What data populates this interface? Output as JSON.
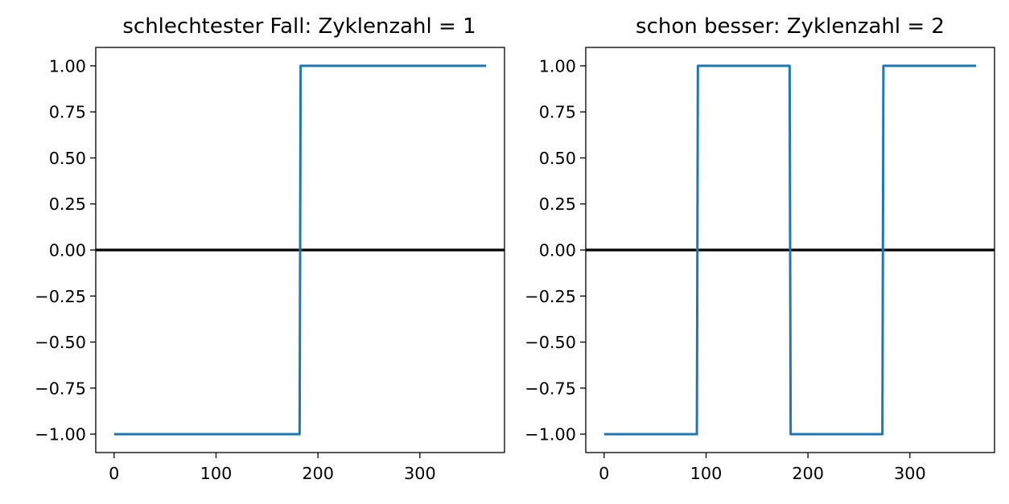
{
  "chart_data": [
    {
      "type": "line",
      "title": "schlechtester Fall: Zyklenzahl = 1",
      "xlabel": "",
      "ylabel": "",
      "xlim": [
        -18,
        383
      ],
      "ylim": [
        -1.1,
        1.1
      ],
      "xticks": [
        0,
        100,
        200,
        300
      ],
      "yticks": [
        1.0,
        0.75,
        0.5,
        0.25,
        0.0,
        -0.25,
        -0.5,
        -0.75,
        -1.0
      ],
      "ytick_labels": [
        "1.00",
        "0.75",
        "0.50",
        "0.25",
        "0.00",
        "−0.25",
        "−0.50",
        "−0.75",
        "−1.00"
      ],
      "xtick_labels": [
        "0",
        "100",
        "200",
        "300"
      ],
      "hline": 0,
      "series": [
        {
          "color": "#1f77b4",
          "points": [
            [
              0,
              -1
            ],
            [
              182,
              -1
            ],
            [
              183,
              1
            ],
            [
              365,
              1
            ]
          ]
        }
      ]
    },
    {
      "type": "line",
      "title": "schon besser: Zyklenzahl = 2",
      "xlabel": "",
      "ylabel": "",
      "xlim": [
        -18,
        383
      ],
      "ylim": [
        -1.1,
        1.1
      ],
      "xticks": [
        0,
        100,
        200,
        300
      ],
      "yticks": [
        1.0,
        0.75,
        0.5,
        0.25,
        0.0,
        -0.25,
        -0.5,
        -0.75,
        -1.0
      ],
      "ytick_labels": [
        "1.00",
        "0.75",
        "0.50",
        "0.25",
        "0.00",
        "−0.25",
        "−0.50",
        "−0.75",
        "−1.00"
      ],
      "xtick_labels": [
        "0",
        "100",
        "200",
        "300"
      ],
      "hline": 0,
      "series": [
        {
          "color": "#1f77b4",
          "points": [
            [
              0,
              -1
            ],
            [
              91,
              -1
            ],
            [
              92,
              1
            ],
            [
              182,
              1
            ],
            [
              183,
              -1
            ],
            [
              273,
              -1
            ],
            [
              274,
              1
            ],
            [
              365,
              1
            ]
          ]
        }
      ]
    }
  ],
  "colors": {
    "series": "#1f77b4",
    "zero_line": "#000000",
    "axes": "#000000"
  }
}
